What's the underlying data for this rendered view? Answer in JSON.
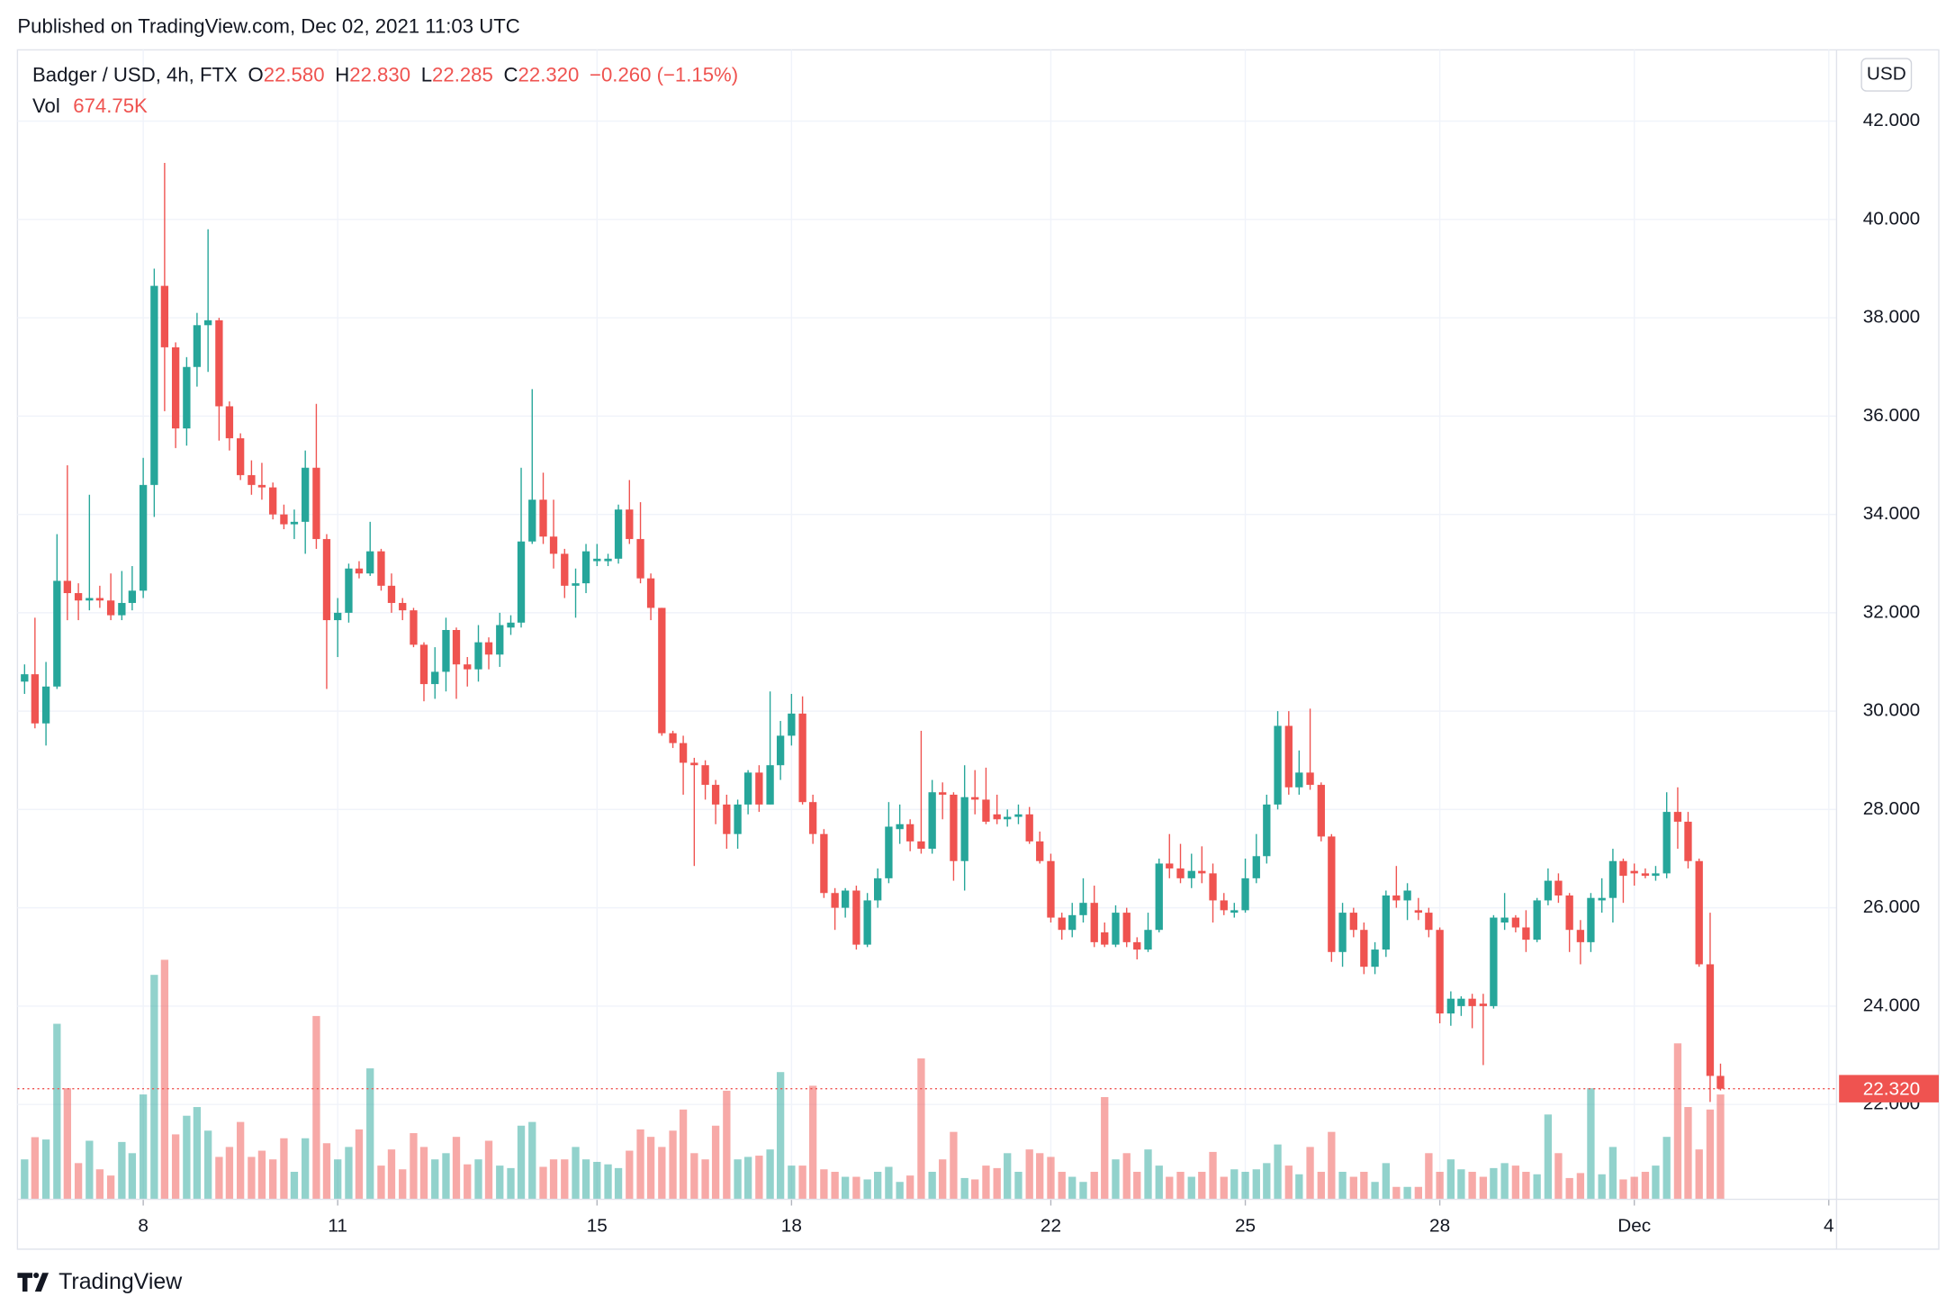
{
  "published": "Published on TradingView.com, Dec 02, 2021 11:03 UTC",
  "brand": "TradingView",
  "currency": "USD",
  "legend": {
    "symbol": "Badger / USD, 4h, FTX",
    "open_label": "O",
    "open": "22.580",
    "high_label": "H",
    "high": "22.830",
    "low_label": "L",
    "low": "22.285",
    "close_label": "C",
    "close": "22.320",
    "change": "−0.260 (−1.15%)",
    "volume_label": "Vol",
    "volume": "674.75K"
  },
  "chart_data": {
    "type": "candlestick",
    "x": [
      6.17,
      6.33,
      6.5,
      6.67,
      6.83,
      7,
      7.17,
      7.33,
      7.5,
      7.67,
      7.83,
      8,
      8.17,
      8.33,
      8.5,
      8.67,
      8.83,
      9,
      9.17,
      9.33,
      9.5,
      9.67,
      9.83,
      10,
      10.17,
      10.33,
      10.5,
      10.67,
      10.83,
      11,
      11.17,
      11.33,
      11.5,
      11.67,
      11.83,
      12,
      12.17,
      12.33,
      12.5,
      12.67,
      12.83,
      13,
      13.17,
      13.33,
      13.5,
      13.67,
      13.83,
      14,
      14.17,
      14.33,
      14.5,
      14.67,
      14.83,
      15,
      15.17,
      15.33,
      15.5,
      15.67,
      15.83,
      16,
      16.17,
      16.33,
      16.5,
      16.67,
      16.83,
      17,
      17.17,
      17.33,
      17.5,
      17.67,
      17.83,
      18,
      18.17,
      18.33,
      18.5,
      18.67,
      18.83,
      19,
      19.17,
      19.33,
      19.5,
      19.67,
      19.83,
      20,
      20.17,
      20.33,
      20.5,
      20.67,
      20.83,
      21,
      21.17,
      21.33,
      21.5,
      21.67,
      21.83,
      22,
      22.17,
      22.33,
      22.5,
      22.67,
      22.83,
      23,
      23.17,
      23.33,
      23.5,
      23.67,
      23.83,
      24,
      24.17,
      24.33,
      24.5,
      24.67,
      24.83,
      25,
      25.17,
      25.33,
      25.5,
      25.67,
      25.83,
      26,
      26.17,
      26.33,
      26.5,
      26.67,
      26.83,
      27,
      27.17,
      27.33,
      27.5,
      27.67,
      27.83,
      28,
      28.17,
      28.33,
      28.5,
      28.67,
      28.83,
      29,
      29.17,
      29.33,
      29.5,
      29.67,
      29.83,
      30,
      30.17,
      30.33,
      30.5,
      30.67,
      30.83,
      31,
      31.17,
      31.33,
      31.5,
      31.67,
      31.83,
      32,
      32.17,
      32.33
    ],
    "open": [
      30.6,
      30.75,
      29.75,
      30.5,
      32.65,
      32.4,
      32.25,
      32.3,
      32.25,
      31.95,
      32.2,
      32.45,
      34.6,
      38.65,
      37.4,
      35.75,
      37.0,
      37.85,
      37.95,
      36.2,
      35.55,
      34.8,
      34.6,
      34.55,
      34.0,
      33.8,
      33.85,
      34.95,
      33.5,
      31.85,
      32.0,
      32.9,
      32.8,
      33.25,
      32.55,
      32.2,
      32.05,
      31.35,
      30.55,
      30.8,
      31.65,
      30.95,
      30.85,
      31.4,
      31.15,
      31.7,
      31.8,
      33.45,
      34.3,
      33.55,
      33.2,
      32.55,
      32.6,
      33.05,
      33.05,
      33.1,
      34.1,
      33.5,
      32.7,
      32.1,
      29.55,
      29.35,
      28.95,
      28.9,
      28.5,
      28.1,
      27.5,
      28.1,
      28.75,
      28.1,
      28.9,
      29.5,
      29.95,
      28.15,
      27.5,
      26.3,
      26.0,
      26.35,
      25.25,
      26.15,
      26.6,
      27.6,
      27.7,
      27.35,
      27.2,
      28.35,
      28.3,
      26.95,
      28.25,
      28.2,
      27.9,
      27.8,
      27.85,
      27.9,
      27.35,
      26.95,
      25.8,
      25.55,
      25.85,
      26.1,
      25.5,
      25.25,
      25.9,
      25.3,
      25.15,
      25.55,
      26.9,
      26.8,
      26.6,
      26.75,
      26.7,
      26.15,
      25.9,
      25.95,
      26.6,
      27.05,
      28.1,
      29.7,
      28.45,
      28.75,
      28.5,
      27.45,
      25.1,
      25.9,
      25.55,
      24.8,
      25.15,
      26.25,
      26.15,
      25.95,
      25.9,
      25.55,
      23.85,
      24.0,
      24.15,
      24.05,
      24.0,
      25.7,
      25.8,
      25.6,
      25.35,
      26.15,
      26.55,
      26.25,
      25.55,
      25.3,
      26.15,
      26.2,
      26.95,
      26.75,
      26.7,
      26.65,
      26.7,
      27.95,
      27.75,
      26.95,
      24.85,
      22.58
    ],
    "high": [
      30.95,
      31.9,
      31.0,
      33.6,
      35.0,
      32.6,
      34.4,
      32.55,
      32.8,
      32.85,
      32.95,
      35.15,
      39.0,
      41.15,
      37.5,
      37.2,
      38.1,
      39.8,
      38.0,
      36.3,
      35.65,
      35.1,
      35.05,
      34.65,
      34.2,
      34.1,
      35.3,
      36.25,
      33.6,
      32.3,
      33.0,
      33.05,
      33.85,
      33.3,
      32.8,
      32.3,
      32.1,
      31.4,
      31.3,
      31.9,
      31.7,
      31.1,
      31.75,
      31.5,
      32.0,
      31.95,
      34.95,
      36.55,
      34.85,
      34.3,
      33.3,
      32.9,
      33.4,
      33.4,
      33.2,
      34.2,
      34.7,
      34.25,
      32.8,
      32.1,
      29.6,
      29.5,
      29.05,
      29.0,
      28.6,
      28.3,
      28.2,
      28.8,
      28.9,
      30.4,
      29.8,
      30.35,
      30.3,
      28.3,
      27.6,
      26.4,
      26.4,
      26.45,
      26.3,
      26.8,
      28.15,
      28.1,
      27.8,
      29.6,
      28.6,
      28.55,
      28.35,
      28.9,
      28.8,
      28.85,
      28.3,
      28.0,
      28.1,
      28.05,
      27.55,
      27.1,
      25.9,
      26.1,
      26.6,
      26.45,
      25.7,
      26.05,
      26.0,
      25.4,
      25.9,
      27.0,
      27.5,
      27.3,
      27.1,
      27.25,
      26.9,
      26.3,
      26.1,
      27.0,
      27.5,
      28.3,
      30.0,
      30.0,
      29.2,
      30.05,
      28.55,
      27.5,
      26.1,
      26.0,
      25.7,
      25.3,
      26.35,
      26.85,
      26.5,
      26.2,
      26.0,
      25.6,
      24.3,
      24.2,
      24.25,
      24.25,
      25.85,
      26.3,
      25.85,
      25.95,
      26.2,
      26.8,
      26.7,
      26.3,
      25.75,
      26.3,
      26.6,
      27.2,
      27.0,
      26.9,
      26.8,
      26.85,
      28.35,
      28.45,
      27.95,
      27.0,
      25.9,
      22.83
    ],
    "low": [
      30.35,
      29.65,
      29.3,
      30.45,
      31.85,
      31.85,
      32.05,
      32.1,
      31.85,
      31.85,
      32.05,
      32.3,
      33.95,
      36.1,
      35.35,
      35.4,
      36.6,
      36.9,
      35.5,
      35.3,
      34.7,
      34.4,
      34.3,
      33.9,
      33.7,
      33.5,
      33.2,
      33.3,
      30.45,
      31.1,
      31.8,
      32.7,
      32.75,
      32.45,
      32.0,
      31.85,
      31.3,
      30.2,
      30.25,
      30.4,
      30.25,
      30.5,
      30.6,
      30.85,
      30.9,
      31.55,
      31.7,
      33.4,
      33.4,
      32.9,
      32.3,
      31.9,
      32.4,
      32.95,
      32.95,
      33.0,
      33.4,
      32.6,
      31.85,
      29.5,
      29.25,
      28.3,
      26.85,
      28.2,
      27.7,
      27.2,
      27.2,
      27.9,
      27.95,
      28.1,
      28.6,
      29.3,
      28.1,
      27.3,
      26.2,
      25.55,
      25.8,
      25.15,
      25.2,
      26.0,
      26.5,
      27.3,
      27.15,
      27.1,
      27.1,
      27.8,
      26.55,
      26.35,
      27.9,
      27.7,
      27.7,
      27.65,
      27.7,
      27.3,
      26.9,
      25.7,
      25.35,
      25.4,
      25.7,
      25.2,
      25.2,
      25.2,
      25.2,
      24.95,
      25.1,
      25.5,
      26.6,
      26.5,
      26.4,
      26.5,
      25.7,
      25.85,
      25.8,
      25.9,
      26.5,
      26.9,
      28.0,
      28.3,
      28.3,
      28.4,
      27.35,
      24.9,
      24.8,
      25.4,
      24.65,
      24.65,
      25.0,
      26.0,
      25.75,
      25.75,
      25.4,
      23.65,
      23.6,
      23.8,
      23.55,
      22.8,
      23.95,
      25.55,
      25.5,
      25.1,
      25.3,
      26.05,
      26.1,
      25.1,
      24.85,
      25.1,
      25.9,
      25.7,
      26.1,
      26.45,
      26.6,
      26.55,
      26.6,
      27.2,
      26.8,
      24.8,
      22.05,
      22.285
    ],
    "close": [
      30.75,
      29.75,
      30.5,
      32.65,
      32.4,
      32.25,
      32.3,
      32.25,
      31.95,
      32.2,
      32.45,
      34.6,
      38.65,
      37.4,
      35.75,
      37.0,
      37.85,
      37.95,
      36.2,
      35.55,
      34.8,
      34.6,
      34.55,
      34.0,
      33.8,
      33.85,
      34.95,
      33.5,
      31.85,
      32.0,
      32.9,
      32.8,
      33.25,
      32.55,
      32.2,
      32.05,
      31.35,
      30.55,
      30.8,
      31.65,
      30.95,
      30.85,
      31.4,
      31.15,
      31.75,
      31.8,
      33.45,
      34.3,
      33.55,
      33.2,
      32.55,
      32.6,
      33.25,
      33.1,
      33.1,
      34.1,
      33.5,
      32.7,
      32.1,
      29.55,
      29.35,
      28.95,
      28.9,
      28.5,
      28.1,
      27.5,
      28.1,
      28.75,
      28.1,
      28.9,
      29.5,
      29.95,
      28.15,
      27.5,
      26.3,
      26.0,
      26.35,
      25.25,
      26.15,
      26.6,
      27.65,
      27.7,
      27.35,
      27.2,
      28.35,
      28.3,
      26.95,
      28.25,
      28.2,
      27.75,
      27.8,
      27.85,
      27.9,
      27.35,
      26.95,
      25.8,
      25.55,
      25.85,
      26.1,
      25.3,
      25.25,
      25.9,
      25.3,
      25.15,
      25.55,
      26.9,
      26.8,
      26.6,
      26.75,
      26.7,
      26.15,
      25.95,
      25.95,
      26.6,
      27.05,
      28.1,
      29.7,
      28.45,
      28.75,
      28.5,
      27.45,
      25.1,
      25.9,
      25.55,
      24.8,
      25.15,
      26.25,
      26.15,
      26.35,
      25.9,
      25.55,
      23.85,
      24.15,
      24.15,
      24.0,
      24.0,
      25.8,
      25.8,
      25.6,
      25.35,
      26.15,
      26.55,
      26.25,
      25.55,
      25.3,
      26.2,
      26.2,
      26.95,
      26.65,
      26.7,
      26.65,
      26.7,
      27.95,
      27.75,
      26.95,
      24.85,
      22.58,
      22.32
    ],
    "volume": [
      257000,
      400000,
      385000,
      1130000,
      715000,
      233000,
      377000,
      193000,
      153000,
      369000,
      297000,
      675000,
      1445000,
      1542000,
      418000,
      538000,
      594000,
      442000,
      273000,
      337000,
      498000,
      273000,
      313000,
      257000,
      393000,
      177000,
      393000,
      1180000,
      361000,
      257000,
      337000,
      450000,
      843000,
      217000,
      321000,
      193000,
      426000,
      337000,
      257000,
      297000,
      402000,
      225000,
      257000,
      377000,
      217000,
      201000,
      474000,
      498000,
      209000,
      257000,
      257000,
      337000,
      257000,
      241000,
      225000,
      201000,
      313000,
      450000,
      402000,
      337000,
      442000,
      578000,
      297000,
      257000,
      474000,
      699000,
      257000,
      273000,
      281000,
      321000,
      819000,
      217000,
      217000,
      731000,
      193000,
      177000,
      145000,
      145000,
      128000,
      177000,
      209000,
      112000,
      153000,
      907000,
      177000,
      257000,
      434000,
      137000,
      128000,
      217000,
      201000,
      297000,
      177000,
      321000,
      297000,
      273000,
      177000,
      145000,
      112000,
      177000,
      658000,
      257000,
      297000,
      177000,
      321000,
      217000,
      145000,
      177000,
      145000,
      177000,
      305000,
      145000,
      193000,
      177000,
      193000,
      233000,
      353000,
      217000,
      161000,
      337000,
      177000,
      434000,
      177000,
      145000,
      177000,
      112000,
      233000,
      80000,
      80000,
      80000,
      297000,
      177000,
      257000,
      193000,
      177000,
      145000,
      201000,
      233000,
      217000,
      177000,
      161000,
      546000,
      297000,
      137000,
      169000,
      715000,
      161000,
      337000,
      128000,
      145000,
      177000,
      217000,
      402000,
      1004000,
      594000,
      321000,
      578000,
      674750
    ],
    "xlim": [
      6.06,
      34.12
    ],
    "xticks": [
      8,
      11,
      15,
      18,
      22,
      25,
      28,
      {
        "value": 31,
        "label": "Dec"
      },
      {
        "value": 34,
        "label": "4"
      }
    ],
    "ylim": [
      20.07,
      43.45
    ],
    "yticks": [
      {
        "value": 22,
        "label": "22.000"
      },
      {
        "value": 24,
        "label": "24.000"
      },
      {
        "value": 26,
        "label": "26.000"
      },
      {
        "value": 28,
        "label": "28.000"
      },
      {
        "value": 30,
        "label": "30.000"
      },
      {
        "value": 32,
        "label": "32.000"
      },
      {
        "value": 34,
        "label": "34.000"
      },
      {
        "value": 36,
        "label": "36.000"
      },
      {
        "value": 38,
        "label": "38.000"
      },
      {
        "value": 40,
        "label": "40.000"
      },
      {
        "value": 42,
        "label": "42.000"
      }
    ],
    "y2lim": [
      0,
      7400000
    ],
    "last_price": {
      "value": 22.32,
      "label": "22.320"
    },
    "grid": true,
    "up_color": "#26a69a",
    "down_color": "#ef5350",
    "volume_up_color": "rgba(38,166,154,0.5)",
    "volume_down_color": "rgba(239,83,80,0.5)"
  }
}
